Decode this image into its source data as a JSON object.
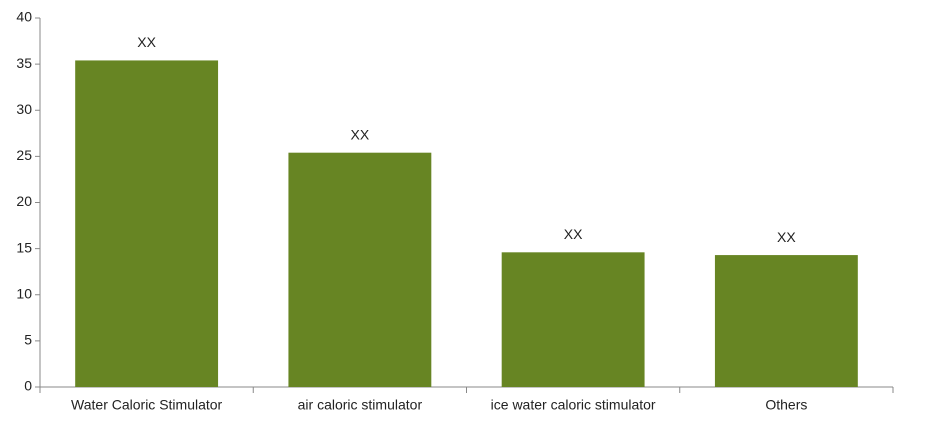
{
  "chart_data": {
    "type": "bar",
    "categories": [
      "Water Caloric Stimulator",
      "air caloric stimulator",
      "ice water caloric stimulator",
      "Others"
    ],
    "values": [
      35.4,
      25.4,
      14.6,
      14.3
    ],
    "value_labels": [
      "XX",
      "XX",
      "XX",
      "XX"
    ],
    "color": "#678523",
    "ylim": [
      0,
      40
    ],
    "yticks": [
      0,
      5,
      10,
      15,
      20,
      25,
      30,
      35,
      40
    ],
    "grid": false
  }
}
